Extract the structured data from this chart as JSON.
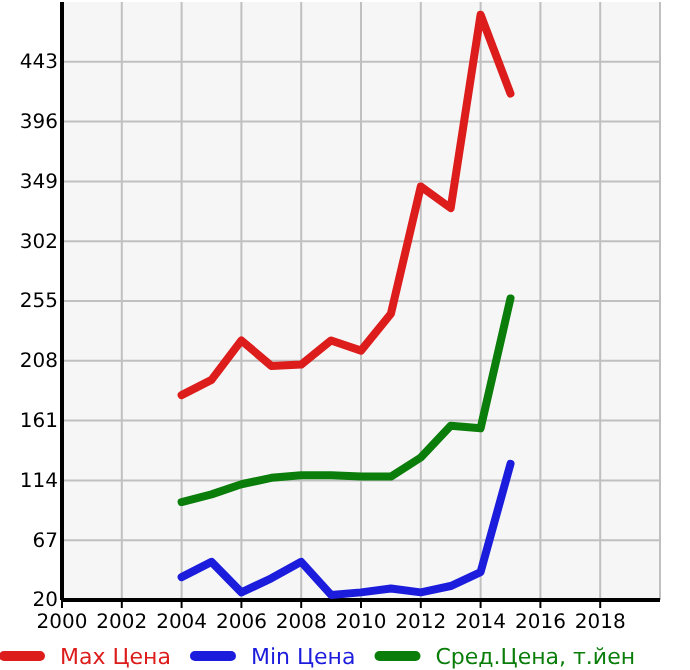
{
  "chart_data": {
    "type": "line",
    "x": [
      2004,
      2005,
      2006,
      2007,
      2008,
      2009,
      2010,
      2011,
      2012,
      2013,
      2014,
      2015
    ],
    "series": [
      {
        "name": "Max Цена",
        "color": "#dd1c1c",
        "values": [
          181,
          193,
          224,
          204,
          205,
          224,
          216,
          245,
          345,
          328,
          480,
          418
        ]
      },
      {
        "name": "Min Цена",
        "color": "#1c1cdd",
        "values": [
          38,
          50,
          26,
          37,
          50,
          24,
          26,
          29,
          26,
          31,
          42,
          127
        ]
      },
      {
        "name": "Сред.Цена, т.йен",
        "color": "#0a7d0a",
        "values": [
          97,
          103,
          111,
          116,
          118,
          118,
          117,
          117,
          132,
          157,
          155,
          257
        ]
      }
    ],
    "xlim": [
      2000,
      2020
    ],
    "xticks": [
      2000,
      2002,
      2004,
      2006,
      2008,
      2010,
      2012,
      2014,
      2016,
      2018
    ],
    "ylim": [
      20,
      490
    ],
    "yticks": [
      20,
      67,
      114,
      161,
      208,
      255,
      302,
      349,
      396,
      443
    ],
    "grid": true,
    "legend": "bottom",
    "marker": "none",
    "line_style": "solid"
  }
}
